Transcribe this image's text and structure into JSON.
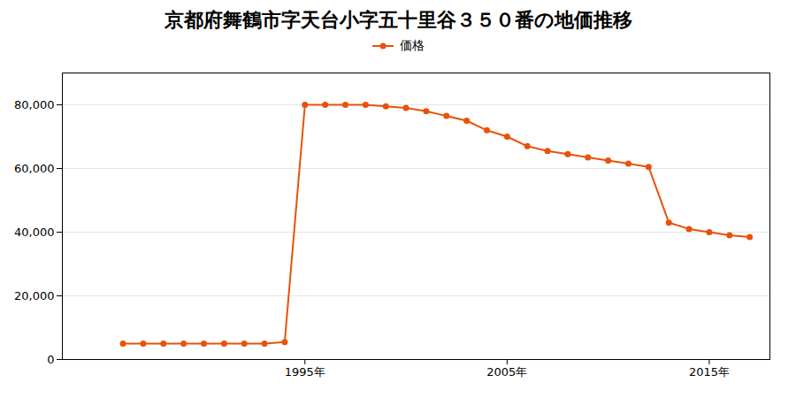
{
  "chart_data": {
    "type": "line",
    "title": "京都府舞鶴市字天台小字五十里谷３５０番の地価推移",
    "x": [
      1986,
      1987,
      1988,
      1989,
      1990,
      1991,
      1992,
      1993,
      1994,
      1995,
      1996,
      1997,
      1998,
      1999,
      2000,
      2001,
      2002,
      2003,
      2004,
      2005,
      2006,
      2007,
      2008,
      2009,
      2010,
      2011,
      2012,
      2013,
      2014,
      2015,
      2016,
      2017
    ],
    "series": [
      {
        "name": "価格",
        "color": "#e8520a",
        "marker": "o",
        "values": [
          5000,
          5000,
          5000,
          5000,
          5000,
          5000,
          5000,
          5000,
          5500,
          80000,
          80000,
          80000,
          80000,
          79500,
          79000,
          78000,
          76500,
          75000,
          72000,
          70000,
          67000,
          65500,
          64500,
          63500,
          62500,
          61500,
          60500,
          43000,
          41000,
          40000,
          39000,
          38500
        ]
      }
    ],
    "xlim": [
      1983,
      2018
    ],
    "xticks": [
      {
        "value": 1995,
        "label": "1995年"
      },
      {
        "value": 2005,
        "label": "2005年"
      },
      {
        "value": 2015,
        "label": "2015年"
      }
    ],
    "ylim": [
      0,
      90000
    ],
    "yticks": [
      0,
      {
        "value": 20000,
        "label": "20,000"
      },
      {
        "value": 40000,
        "label": "40,000"
      },
      {
        "value": 60000,
        "label": "60,000"
      },
      {
        "value": 80000,
        "label": "80,000"
      }
    ],
    "grid": true,
    "legend": "top"
  }
}
